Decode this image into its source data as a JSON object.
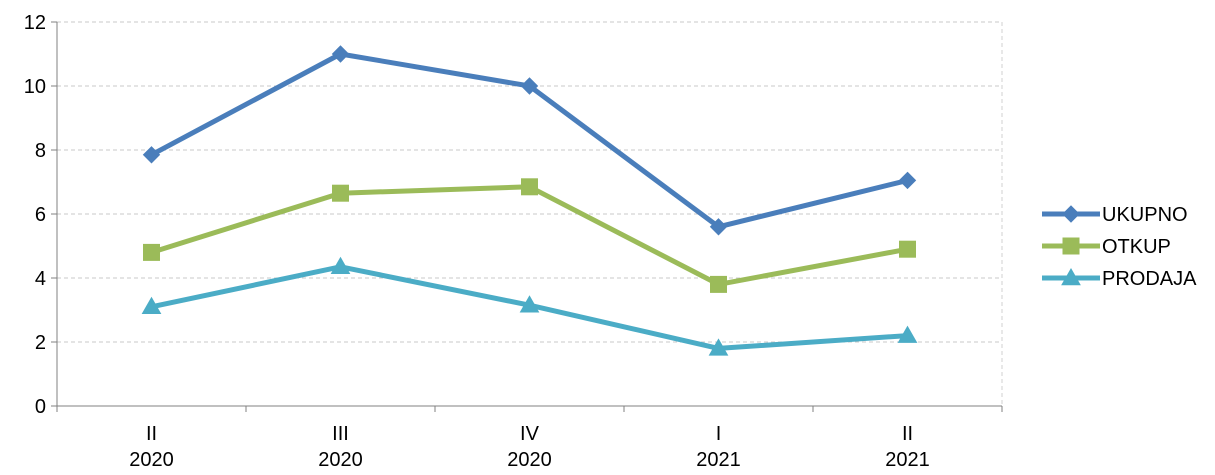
{
  "chart_data": {
    "type": "line",
    "title": "",
    "xlabel": "",
    "ylabel": "",
    "ylim": [
      0,
      12
    ],
    "yticks": [
      0,
      2,
      4,
      6,
      8,
      10,
      12
    ],
    "grid": true,
    "legend_position": "right",
    "categories": [
      {
        "line1": "II",
        "line2": "2020"
      },
      {
        "line1": "III",
        "line2": "2020"
      },
      {
        "line1": "IV",
        "line2": "2020"
      },
      {
        "line1": "I",
        "line2": "2021"
      },
      {
        "line1": "II",
        "line2": "2021"
      }
    ],
    "series": [
      {
        "name": "UKUPNO",
        "color": "#4a7ebb",
        "marker": "diamond",
        "values": [
          7.85,
          11.0,
          10.0,
          5.6,
          7.05
        ]
      },
      {
        "name": "OTKUP",
        "color": "#9bbb59",
        "marker": "square",
        "values": [
          4.8,
          6.65,
          6.85,
          3.8,
          4.9
        ]
      },
      {
        "name": "PRODAJA",
        "color": "#4bacc6",
        "marker": "triangle",
        "values": [
          3.1,
          4.35,
          3.15,
          1.8,
          2.2
        ]
      }
    ]
  }
}
